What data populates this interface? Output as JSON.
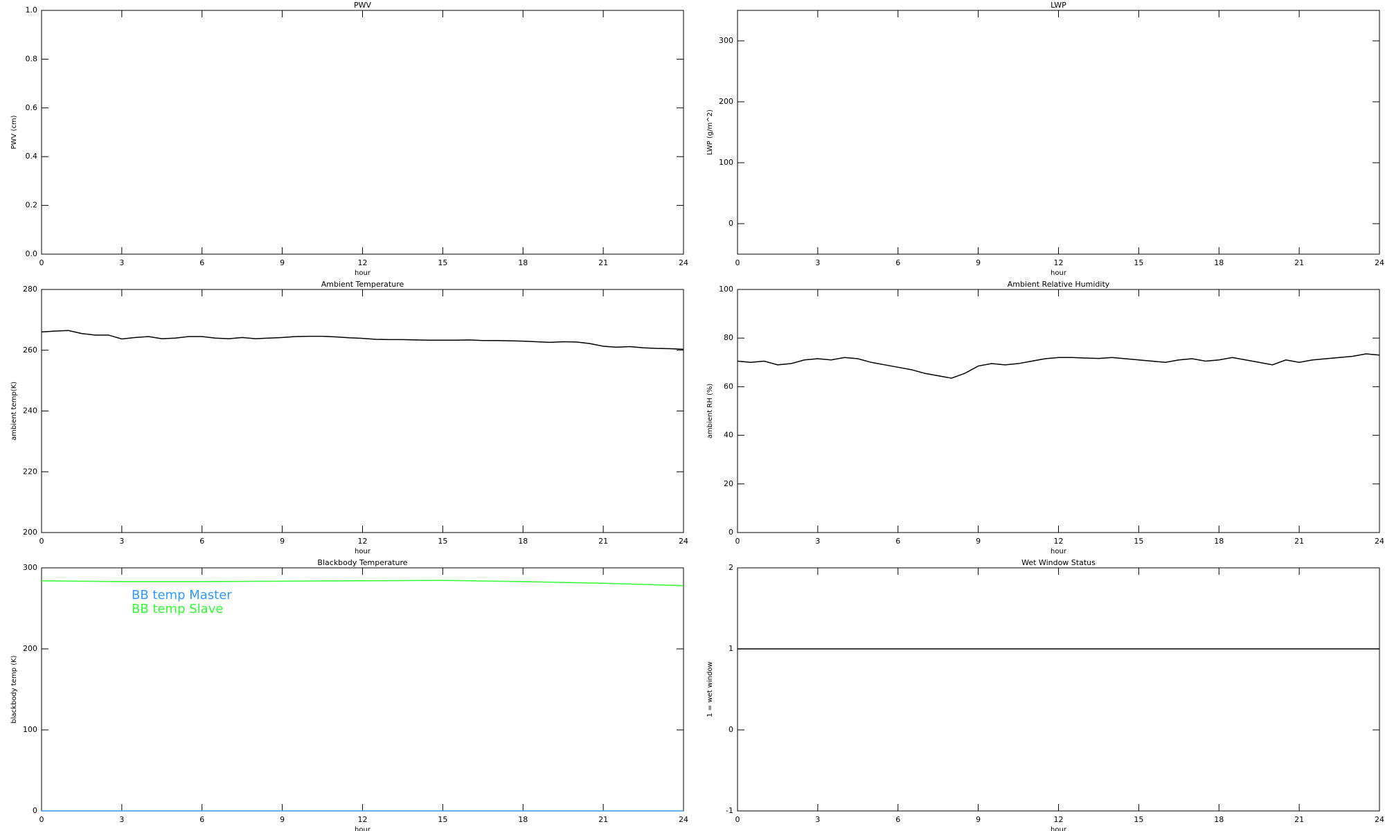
{
  "chart_data": [
    {
      "type": "line",
      "title": "PWV",
      "xlabel": "hour",
      "ylabel": "PWV (cm)",
      "xlim": [
        0,
        24
      ],
      "xticks": [
        0,
        3,
        6,
        9,
        12,
        15,
        18,
        21,
        24
      ],
      "ylim": [
        0,
        1
      ],
      "yticks": [
        {
          "value": 0,
          "label": "0.0"
        },
        0.2,
        0.4,
        0.6,
        0.8,
        {
          "value": 1,
          "label": "1.0"
        }
      ]
    },
    {
      "type": "line",
      "title": "LWP",
      "xlabel": "hour",
      "ylabel": "LWP (g/m^2)",
      "xlim": [
        0,
        24
      ],
      "xticks": [
        0,
        3,
        6,
        9,
        12,
        15,
        18,
        21,
        24
      ],
      "ylim": [
        -50,
        350
      ],
      "yticks": [
        0,
        100,
        200,
        300
      ]
    },
    {
      "type": "line",
      "title": "Ambient Temperature",
      "xlabel": "hour",
      "ylabel": "ambient temp(K)",
      "xlim": [
        0,
        24
      ],
      "xticks": [
        0,
        3,
        6,
        9,
        12,
        15,
        18,
        21,
        24
      ],
      "ylim": [
        200,
        280
      ],
      "yticks": [
        200,
        220,
        240,
        260,
        280
      ],
      "color": "#000000",
      "x": [
        0,
        0.5,
        1,
        1.5,
        2,
        2.5,
        3,
        3.5,
        4,
        4.5,
        5,
        5.5,
        6,
        6.5,
        7,
        7.5,
        8,
        8.5,
        9,
        9.5,
        10,
        10.5,
        11,
        11.5,
        12,
        12.5,
        13,
        13.5,
        14,
        14.5,
        15,
        15.5,
        16,
        16.5,
        17,
        17.5,
        18,
        18.5,
        19,
        19.5,
        20,
        20.5,
        21,
        21.5,
        22,
        22.5,
        23,
        23.5,
        24
      ],
      "values": [
        266,
        266.3,
        266.5,
        265.5,
        265,
        265,
        263.7,
        264.2,
        264.5,
        263.8,
        264,
        264.5,
        264.5,
        264,
        263.8,
        264.2,
        263.8,
        264,
        264.2,
        264.5,
        264.6,
        264.6,
        264.4,
        264.1,
        263.9,
        263.6,
        263.5,
        263.5,
        263.4,
        263.3,
        263.3,
        263.3,
        263.4,
        263.2,
        263.2,
        263.1,
        263,
        262.8,
        262.6,
        262.8,
        262.7,
        262.2,
        261.3,
        261,
        261.2,
        260.8,
        260.6,
        260.5,
        260.3
      ]
    },
    {
      "type": "line",
      "title": "Ambient Relative Humidity",
      "xlabel": "hour",
      "ylabel": "ambient RH (%)",
      "xlim": [
        0,
        24
      ],
      "xticks": [
        0,
        3,
        6,
        9,
        12,
        15,
        18,
        21,
        24
      ],
      "ylim": [
        0,
        100
      ],
      "yticks": [
        0,
        20,
        40,
        60,
        80,
        100
      ],
      "color": "#000000",
      "x": [
        0,
        0.5,
        1,
        1.5,
        2,
        2.5,
        3,
        3.5,
        4,
        4.5,
        5,
        5.5,
        6,
        6.5,
        7,
        7.5,
        8,
        8.5,
        9,
        9.5,
        10,
        10.5,
        11,
        11.5,
        12,
        12.5,
        13,
        13.5,
        14,
        14.5,
        15,
        15.5,
        16,
        16.5,
        17,
        17.5,
        18,
        18.5,
        19,
        19.5,
        20,
        20.5,
        21,
        21.5,
        22,
        22.5,
        23,
        23.5,
        24
      ],
      "values": [
        70.5,
        70,
        70.5,
        69,
        69.5,
        71,
        71.5,
        71,
        72,
        71.5,
        70,
        69,
        68,
        67,
        65.5,
        64.5,
        63.5,
        65.5,
        68.5,
        69.5,
        69,
        69.5,
        70.5,
        71.5,
        72,
        72,
        71.8,
        71.6,
        72,
        71.5,
        71,
        70.5,
        70,
        71,
        71.5,
        70.5,
        71,
        72,
        71,
        70,
        69,
        71,
        70,
        71,
        71.5,
        72,
        72.5,
        73.5,
        73
      ]
    },
    {
      "type": "line",
      "title": "Blackbody Temperature",
      "xlabel": "hour",
      "ylabel": "blackbody temp (K)",
      "xlim": [
        0,
        24
      ],
      "xticks": [
        0,
        3,
        6,
        9,
        12,
        15,
        18,
        21,
        24
      ],
      "ylim": [
        0,
        300
      ],
      "yticks": [
        0,
        100,
        200,
        300
      ],
      "legend": "upper left",
      "x": [
        0,
        3,
        6,
        9,
        12,
        15,
        18,
        21,
        24
      ],
      "series": [
        {
          "name": "BB temp Master",
          "color": "#3399ff",
          "values": [
            0,
            0,
            0,
            0,
            0,
            0,
            0,
            0,
            0
          ]
        },
        {
          "name": "BB temp Slave",
          "color": "#33ff33",
          "values": [
            284,
            283,
            283,
            283.5,
            284,
            284.5,
            283,
            281,
            278
          ]
        }
      ]
    },
    {
      "type": "line",
      "title": "Wet Window Status",
      "xlabel": "hour",
      "ylabel": "1 = wet window",
      "xlim": [
        0,
        24
      ],
      "xticks": [
        0,
        3,
        6,
        9,
        12,
        15,
        18,
        21,
        24
      ],
      "ylim": [
        -1,
        2
      ],
      "yticks": [
        -1,
        0,
        1,
        2
      ],
      "color": "#000000",
      "x": [
        0,
        24
      ],
      "values": [
        1,
        1
      ]
    }
  ]
}
